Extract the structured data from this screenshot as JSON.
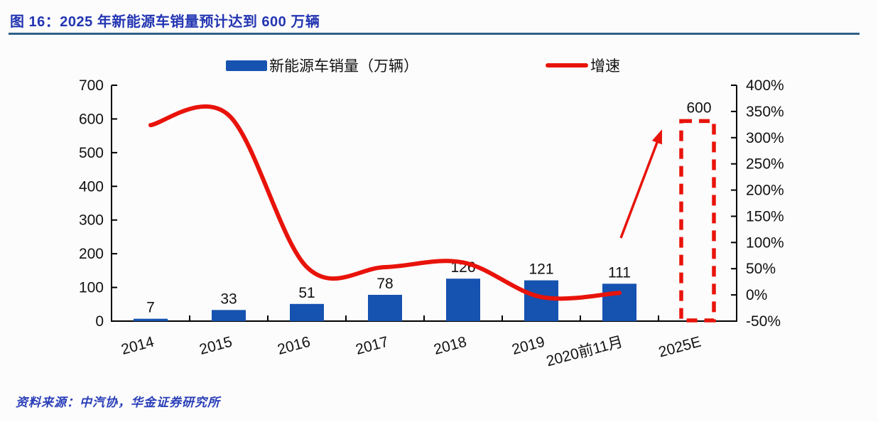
{
  "title": "图 16：2025 年新能源车销量预计达到 600 万辆",
  "source": "资料来源：中汽协，华金证券研究所",
  "colors": {
    "bar_blue": "#1652b0",
    "line_red": "#e8130a",
    "title_blue": "#2335b2",
    "rule_blue": "#2f6288",
    "source_blue": "#2a3eb8",
    "axis_black": "#000000"
  },
  "legend": [
    {
      "label": "新能源车销量（万辆）",
      "type": "bar",
      "color": "#1652b0"
    },
    {
      "label": "增速",
      "type": "line",
      "color": "#e8130a"
    }
  ],
  "chart_data": {
    "type": "combo",
    "categories": [
      "2014",
      "2015",
      "2016",
      "2017",
      "2018",
      "2019",
      "2020前11月",
      "2025E"
    ],
    "series": [
      {
        "name": "新能源车销量（万辆）",
        "type": "bar",
        "axis": "left",
        "values": [
          7,
          33,
          51,
          78,
          126,
          121,
          111,
          600
        ],
        "data_labels": [
          "7",
          "33",
          "51",
          "78",
          "126",
          "121",
          "111",
          "600"
        ],
        "forecast_index": 7,
        "forecast_style": "red-dashed-outline"
      },
      {
        "name": "增速",
        "type": "line",
        "axis": "right",
        "unit": "%",
        "values": [
          324,
          343,
          53,
          53,
          62,
          -4,
          4,
          null
        ],
        "smooth": true
      }
    ],
    "left_axis": {
      "min": 0,
      "max": 700,
      "step": 100,
      "ticks": [
        "700",
        "600",
        "500",
        "400",
        "300",
        "200",
        "100",
        "0"
      ]
    },
    "right_axis": {
      "min": -50,
      "max": 400,
      "step": 50,
      "ticks": [
        "400%",
        "350%",
        "300%",
        "250%",
        "200%",
        "150%",
        "100%",
        "50%",
        "0%",
        "-50%"
      ]
    },
    "grid": false,
    "legend_position": "top",
    "annotations": {
      "forecast_label": "600",
      "arrow_to_forecast": true
    }
  }
}
